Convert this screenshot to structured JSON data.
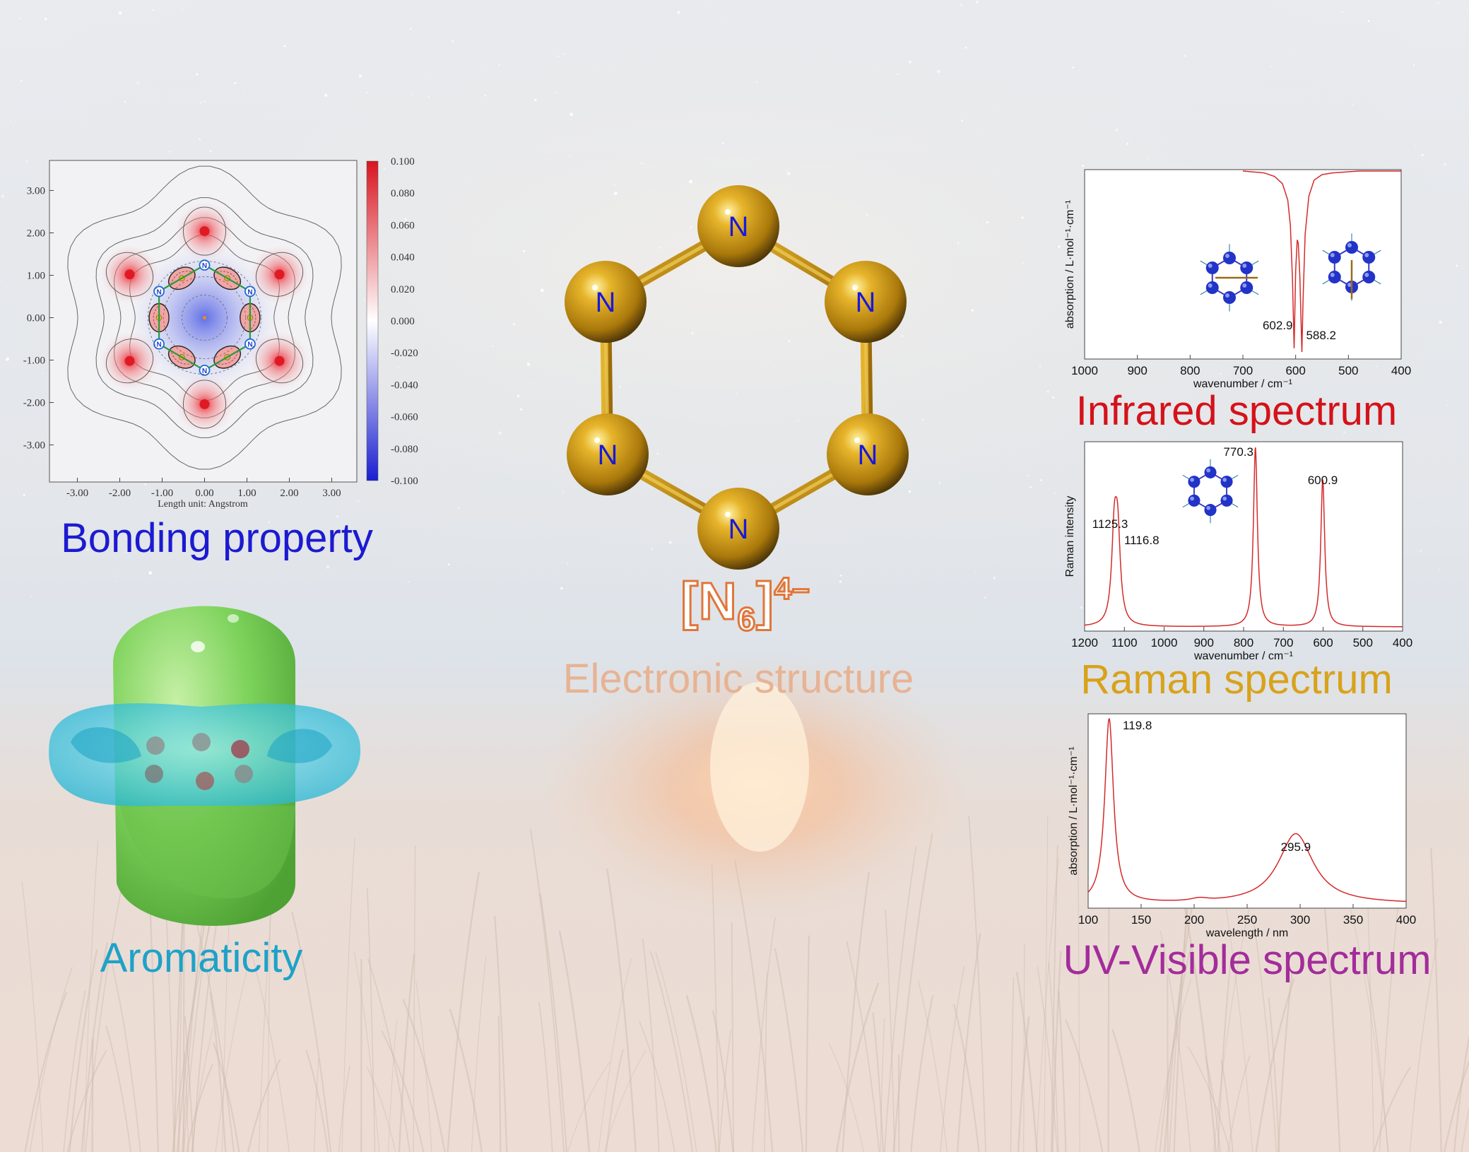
{
  "captions": {
    "bonding": "Bonding property",
    "aromaticity": "Aromaticity",
    "electronic": "Electronic structure",
    "infrared": "Infrared spectrum",
    "raman": "Raman spectrum",
    "uv": "UV-Visible spectrum"
  },
  "colors": {
    "bonding": "#1c1ad0",
    "aromaticity": "#1ea2c8",
    "electronic": "#e7b394",
    "infrared": "#d4121a",
    "raman": "#d8a21b",
    "uv": "#a32c9b",
    "spectrum_line": "#d42a2a",
    "atom_gold": "#c8951a",
    "atom_label": "#1a1ad8"
  },
  "structure": {
    "atom_label": "N",
    "atoms": [
      "N",
      "N",
      "N",
      "N",
      "N",
      "N"
    ],
    "formula": {
      "open": "[",
      "element": "N",
      "subscript": "6",
      "close": "]",
      "charge": "4–"
    }
  },
  "bonding": {
    "map": {
      "type": "contour",
      "x_ticks": [
        "-3.00",
        "-2.00",
        "-1.00",
        "0.00",
        "1.00",
        "2.00",
        "3.00"
      ],
      "y_ticks": [
        "3.00",
        "2.00",
        "1.00",
        "0.00",
        "-1.00",
        "-2.00",
        "-3.00"
      ],
      "xlabel": "Length unit: Angstrom",
      "colorbar_ticks": [
        "0.100",
        "0.080",
        "0.060",
        "0.040",
        "0.020",
        "0.000",
        "-0.020",
        "-0.040",
        "-0.060",
        "-0.080",
        "-0.100"
      ],
      "colorbar_range": [
        -0.1,
        0.1
      ],
      "atom_label": "N"
    }
  },
  "chart_data": [
    {
      "id": "infrared",
      "type": "line",
      "title": "Infrared spectrum",
      "xlabel": "wavenumber / cm⁻¹",
      "ylabel": "absorption / L·mol⁻¹·cm⁻¹",
      "xlim": [
        1000,
        400
      ],
      "x_ticks": [
        1000,
        900,
        800,
        700,
        600,
        500,
        400
      ],
      "inverted_y": true,
      "series": [
        {
          "x": [
            1000,
            700,
            660,
            640,
            625,
            615,
            610,
            606,
            602.9,
            600,
            597,
            595,
            592,
            590,
            588.2,
            586,
            582,
            575,
            565,
            550,
            530,
            480,
            420,
            400
          ],
          "y": [
            0,
            0,
            0.01,
            0.03,
            0.07,
            0.16,
            0.3,
            0.6,
            0.98,
            0.55,
            0.38,
            0.4,
            0.58,
            0.8,
            1.0,
            0.72,
            0.35,
            0.14,
            0.05,
            0.02,
            0.01,
            0,
            0,
            0
          ]
        }
      ],
      "peak_labels": [
        {
          "x": 602.9,
          "label": "602.9"
        },
        {
          "x": 588.2,
          "label": "588.2"
        }
      ]
    },
    {
      "id": "raman",
      "type": "line",
      "title": "Raman spectrum",
      "xlabel": "wavenumber / cm⁻¹",
      "ylabel": "Raman intensity",
      "xlim": [
        1200,
        400
      ],
      "x_ticks": [
        1200,
        1100,
        1000,
        900,
        800,
        700,
        600,
        500,
        400
      ],
      "series": [
        {
          "peaks": [
            {
              "x": 1125.3,
              "height": 0.47,
              "width": 8
            },
            {
              "x": 1116.8,
              "height": 0.46,
              "width": 8
            },
            {
              "x": 770.3,
              "height": 1.0,
              "width": 6
            },
            {
              "x": 600.9,
              "height": 0.82,
              "width": 6
            }
          ]
        }
      ],
      "peak_labels": [
        {
          "x": 1125.3,
          "label": "1125.3"
        },
        {
          "x": 1116.8,
          "label": "1116.8"
        },
        {
          "x": 770.3,
          "label": "770.3"
        },
        {
          "x": 600.9,
          "label": "600.9"
        }
      ]
    },
    {
      "id": "uv",
      "type": "line",
      "title": "UV-Visible spectrum",
      "xlabel": "wavelength / nm",
      "ylabel": "absorption / L·mol⁻¹·cm⁻¹",
      "xlim": [
        100,
        400
      ],
      "x_ticks": [
        100,
        150,
        200,
        250,
        300,
        350,
        400
      ],
      "series": [
        {
          "peaks": [
            {
              "x": 119.8,
              "height": 1.0,
              "width": 5
            },
            {
              "x": 295.9,
              "height": 0.38,
              "width": 20
            },
            {
              "x": 205,
              "height": 0.015,
              "width": 10
            }
          ]
        }
      ],
      "peak_labels": [
        {
          "x": 119.8,
          "label": "119.8"
        },
        {
          "x": 295.9,
          "label": "295.9"
        }
      ]
    }
  ]
}
